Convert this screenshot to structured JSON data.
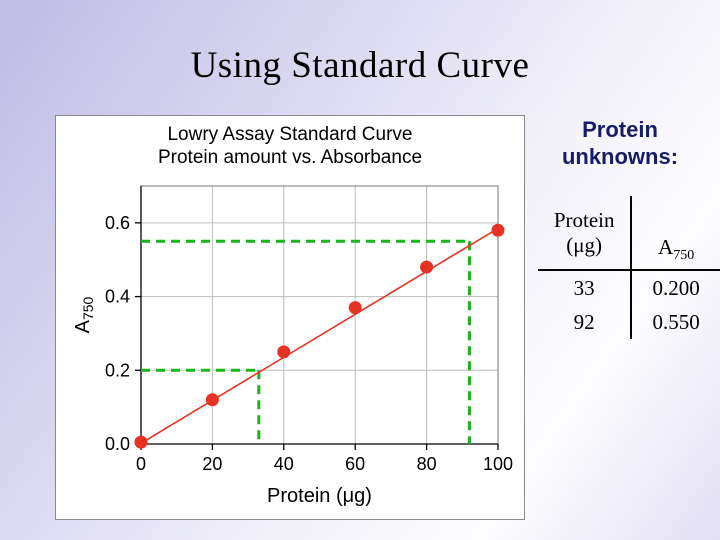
{
  "slide": {
    "title": "Using Standard Curve"
  },
  "chart": {
    "panel_title_line1": "Lowry Assay Standard Curve",
    "panel_title_line2": "Protein amount vs. Absorbance"
  },
  "chart_data": {
    "type": "scatter",
    "title": "Lowry Assay Standard Curve — Protein amount vs. Absorbance",
    "x": [
      0,
      20,
      40,
      60,
      80,
      100
    ],
    "y": [
      0.005,
      0.12,
      0.25,
      0.37,
      0.48,
      0.58
    ],
    "xlabel": "Protein (μg)",
    "ylabel_base": "A",
    "ylabel_sub": "750",
    "xlim": [
      0,
      100
    ],
    "ylim": [
      0,
      0.7
    ],
    "x_ticks": [
      0,
      20,
      40,
      60,
      80,
      100
    ],
    "y_ticks": [
      0,
      0.2,
      0.4,
      0.6
    ],
    "grid": true,
    "legend": false,
    "fit_line": {
      "x": [
        0,
        100
      ],
      "y": [
        0.002,
        0.585
      ]
    },
    "unknown_crosshairs": [
      {
        "x": 33,
        "y": 0.2
      },
      {
        "x": 92,
        "y": 0.55
      }
    ],
    "colors": {
      "point": "#e63222",
      "line": "#e63222",
      "dashed": "#1cb41c",
      "grid": "#bdbdbd"
    }
  },
  "unknowns": {
    "heading_line1": "Protein",
    "heading_line2": "unknowns:",
    "heading_color": "#141d66",
    "table": {
      "col1_header_line1": "Protein",
      "col1_header_line2": "(μg)",
      "col2_header_base": "A",
      "col2_header_sub": "750",
      "rows": [
        {
          "protein": "33",
          "a750": "0.200"
        },
        {
          "protein": "92",
          "a750": "0.550"
        }
      ]
    }
  }
}
